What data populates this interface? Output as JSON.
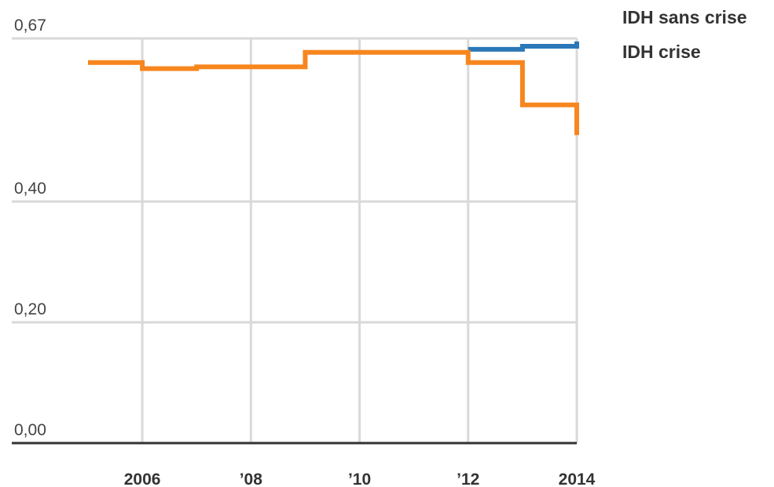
{
  "chart_data": {
    "type": "step",
    "x": [
      2005,
      2006,
      2007,
      2008,
      2009,
      2010,
      2011,
      2012,
      2013,
      2014
    ],
    "series": [
      {
        "name": "IDH sans crise",
        "color": "#2b78b8",
        "values": [
          null,
          null,
          null,
          null,
          null,
          null,
          null,
          0.652,
          0.657,
          0.665
        ]
      },
      {
        "name": "IDH crise",
        "color": "#f7861e",
        "values": [
          0.63,
          0.62,
          0.623,
          0.623,
          0.647,
          0.647,
          0.647,
          0.63,
          0.56,
          0.51
        ]
      }
    ],
    "xlim": [
      2005,
      2014
    ],
    "xticks": [
      {
        "value": 2006,
        "label": "2006"
      },
      {
        "value": 2008,
        "label": "’08"
      },
      {
        "value": 2010,
        "label": "’10"
      },
      {
        "value": 2012,
        "label": "’12"
      },
      {
        "value": 2014,
        "label": "2014"
      }
    ],
    "ylim": [
      0,
      0.67
    ],
    "yticks": [
      {
        "value": 0,
        "label": "0,00"
      },
      {
        "value": 0.2,
        "label": "0,20"
      },
      {
        "value": 0.4,
        "label": "0,40"
      },
      {
        "value": 0.67,
        "label": "0,67"
      }
    ],
    "grid": true
  }
}
